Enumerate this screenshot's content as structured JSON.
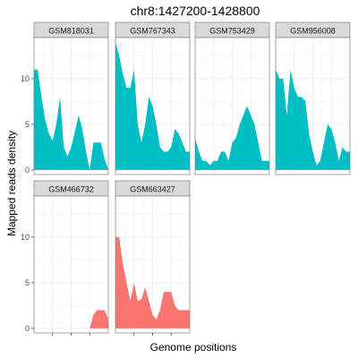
{
  "chart_data": {
    "type": "area",
    "title": "chr8:1427200-1428800",
    "xlabel": "Genome positions",
    "ylabel": "Mapped reads density",
    "ylim": [
      -0.5,
      14.5
    ],
    "y_ticks": [
      0,
      5,
      10
    ],
    "grid": true,
    "facet_layout": {
      "columns": 4,
      "rows": 2
    },
    "x": [
      0,
      0.05,
      0.1,
      0.15,
      0.2,
      0.25,
      0.3,
      0.35,
      0.4,
      0.45,
      0.5,
      0.55,
      0.6,
      0.65,
      0.7,
      0.75,
      0.8,
      0.85,
      0.9,
      0.95,
      1.0
    ],
    "colors": {
      "cyan_group": "#00BFC4",
      "red_group": "#F8766D"
    },
    "panels": [
      {
        "name": "GSM818031",
        "color_group": "cyan_group",
        "values": [
          11,
          11,
          8,
          5.5,
          4,
          3.2,
          5,
          8,
          2.5,
          1.5,
          2.5,
          4.2,
          6,
          4.5,
          2,
          0,
          3,
          3,
          3,
          1.2,
          0
        ]
      },
      {
        "name": "GSM767343",
        "color_group": "cyan_group",
        "values": [
          14,
          12.5,
          10.5,
          9,
          9,
          11,
          5,
          3,
          5,
          8,
          7,
          5,
          2.5,
          2,
          2,
          2.5,
          4.5,
          4,
          3,
          2,
          2
        ]
      },
      {
        "name": "GSM753429",
        "color_group": "cyan_group",
        "values": [
          3.5,
          2,
          1,
          1,
          0.5,
          1,
          1,
          2,
          2,
          1,
          3,
          3.5,
          5,
          6,
          7,
          6,
          5,
          3,
          1,
          1,
          1
        ]
      },
      {
        "name": "GSM956008",
        "color_group": "cyan_group",
        "values": [
          11,
          10,
          10,
          6,
          11,
          9,
          8,
          8,
          7.5,
          4,
          2,
          0.5,
          1,
          3,
          5,
          4.5,
          3,
          1,
          2.5,
          2,
          2
        ]
      },
      {
        "name": "GSM466732",
        "color_group": "red_group",
        "values": [
          0,
          0,
          0,
          0,
          0,
          0,
          0,
          0,
          0,
          0,
          0,
          0,
          0,
          0,
          0,
          0,
          1.5,
          2,
          2,
          2,
          1
        ]
      },
      {
        "name": "GSM663427",
        "color_group": "red_group",
        "values": [
          10,
          10,
          7,
          5,
          3,
          5,
          3,
          3.2,
          4.5,
          3,
          1.5,
          1,
          2,
          4,
          4,
          4,
          2.5,
          2,
          2,
          2,
          2
        ]
      }
    ]
  }
}
